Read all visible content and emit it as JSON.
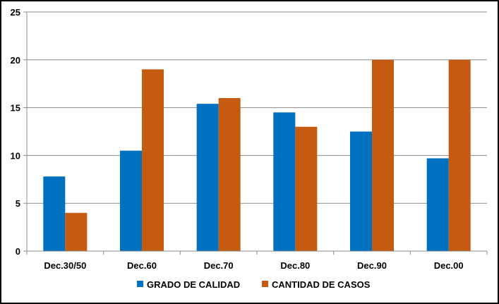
{
  "chart_data": {
    "type": "bar",
    "categories": [
      "Dec.30/50",
      "Dec.60",
      "Dec.70",
      "Dec.80",
      "Dec.90",
      "Dec.00"
    ],
    "series": [
      {
        "name": "GRADO DE CALIDAD",
        "color": "#0070C0",
        "values": [
          7.8,
          10.5,
          15.4,
          14.5,
          12.5,
          9.7
        ]
      },
      {
        "name": "CANTIDAD DE CASOS",
        "color": "#C55A11",
        "values": [
          4,
          19,
          16,
          13,
          20,
          20
        ]
      }
    ],
    "ylim": [
      0,
      25
    ],
    "yticks": [
      0,
      5,
      10,
      15,
      20,
      25
    ],
    "grid": true,
    "legend_position": "bottom",
    "title": "",
    "xlabel": "",
    "ylabel": ""
  }
}
